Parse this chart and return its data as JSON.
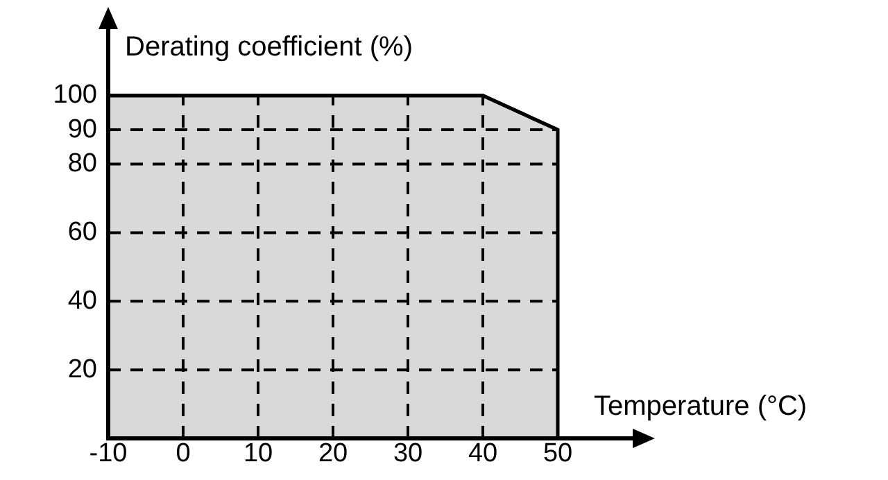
{
  "chart_data": {
    "type": "area",
    "xlabel": "Temperature (°C)",
    "ylabel": "Derating coefficient (%)",
    "x": [
      -10,
      40,
      50
    ],
    "series": [
      {
        "color": "#000000",
        "values": [
          100,
          100,
          90
        ]
      }
    ],
    "xlim": [
      -10,
      60
    ],
    "xticks": [
      -10,
      0,
      10,
      20,
      30,
      40,
      50
    ],
    "ylim": [
      0,
      120
    ],
    "yticks": [
      20,
      40,
      60,
      80,
      90,
      100
    ],
    "grid": true,
    "legend": false,
    "line_style": "solid",
    "marker": "none"
  }
}
